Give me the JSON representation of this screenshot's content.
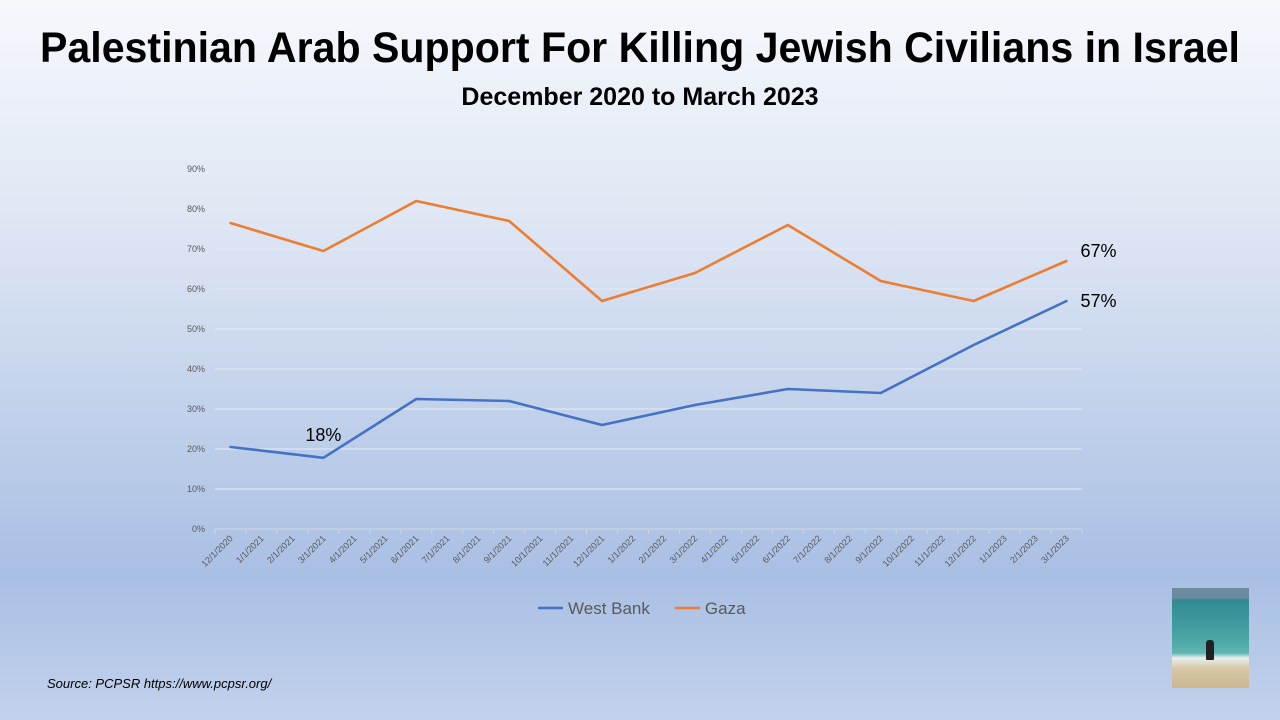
{
  "title": "Palestinian Arab Support For Killing Jewish Civilians in Israel",
  "subtitle": "December 2020 to March 2023",
  "source": "Source: PCPSR https://www.pcpsr.org/",
  "chart_data": {
    "type": "line",
    "title": "Palestinian Arab Support For Killing Jewish Civilians in Israel",
    "categories": [
      "12/1/2020",
      "1/1/2021",
      "2/1/2021",
      "3/1/2021",
      "4/1/2021",
      "5/1/2021",
      "6/1/2021",
      "7/1/2021",
      "8/1/2021",
      "9/1/2021",
      "10/1/2021",
      "11/1/2021",
      "12/1/2021",
      "1/1/2022",
      "2/1/2022",
      "3/1/2022",
      "4/1/2022",
      "5/1/2022",
      "6/1/2022",
      "7/1/2022",
      "8/1/2022",
      "9/1/2022",
      "10/1/2022",
      "11/1/2022",
      "12/1/2022",
      "1/1/2023",
      "2/1/2023",
      "3/1/2023"
    ],
    "series": [
      {
        "name": "West Bank",
        "color": "#4472c4",
        "points": [
          [
            0,
            20.5
          ],
          [
            3,
            17.8
          ],
          [
            6,
            32.5
          ],
          [
            9,
            32
          ],
          [
            12,
            26
          ],
          [
            15,
            31
          ],
          [
            18,
            35
          ],
          [
            21,
            34
          ],
          [
            24,
            46
          ],
          [
            27,
            57
          ]
        ]
      },
      {
        "name": "Gaza",
        "color": "#ed7d31",
        "points": [
          [
            0,
            76.5
          ],
          [
            3,
            69.5
          ],
          [
            6,
            82
          ],
          [
            9,
            77
          ],
          [
            12,
            57
          ],
          [
            15,
            64
          ],
          [
            18,
            76
          ],
          [
            21,
            62
          ],
          [
            24,
            57
          ],
          [
            27,
            67
          ]
        ]
      }
    ],
    "yticks": [
      "0%",
      "10%",
      "20%",
      "30%",
      "40%",
      "50%",
      "60%",
      "70%",
      "80%",
      "90%"
    ],
    "ylim": [
      0,
      90
    ],
    "annotations": [
      {
        "text": "18%",
        "series": "West Bank",
        "index": 3
      },
      {
        "text": "67%",
        "series": "Gaza",
        "index": 27
      },
      {
        "text": "57%",
        "series": "West Bank",
        "index": 27
      }
    ],
    "legend": "bottom",
    "grid": true
  }
}
